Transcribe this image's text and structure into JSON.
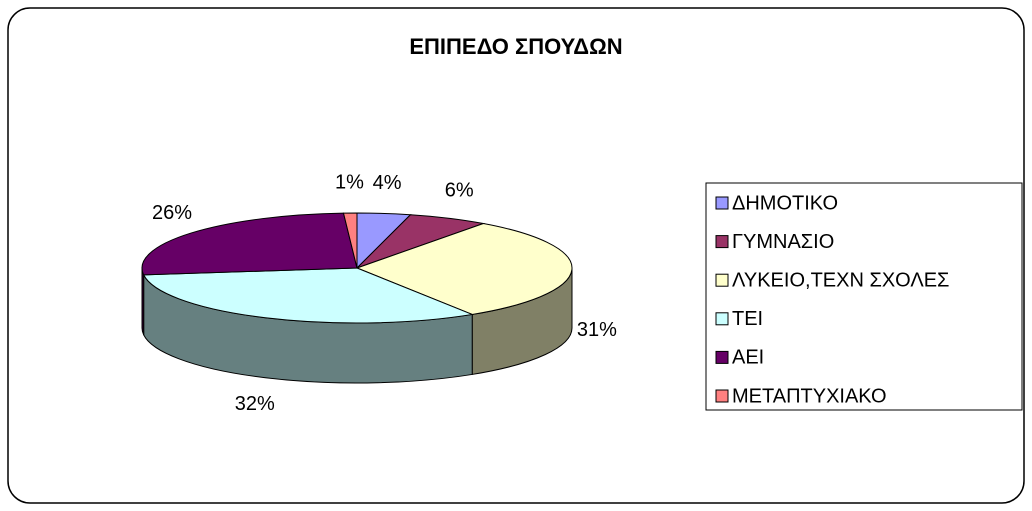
{
  "chart_data": {
    "type": "pie3d",
    "title": "ΕΠΙΠΕΔΟ ΣΠΟΥΔΩΝ",
    "categories": [
      "ΔΗΜΟΤΙΚΟ",
      "ΓΥΜΝΑΣΙΟ",
      "ΛΥΚΕΙΟ,ΤΕΧΝ ΣΧΟΛΕΣ",
      "ΤΕΙ",
      "ΑΕΙ",
      "ΜΕΤΑΠΤΥΧΙΑΚΟ"
    ],
    "values": [
      4,
      6,
      31,
      32,
      26,
      1
    ],
    "value_labels": [
      "4%",
      "6%",
      "31%",
      "32%",
      "26%",
      "1%"
    ],
    "colors": [
      "#9999ff",
      "#993366",
      "#ffffcc",
      "#ccffff",
      "#660066",
      "#ff8080"
    ],
    "legend": "right"
  }
}
